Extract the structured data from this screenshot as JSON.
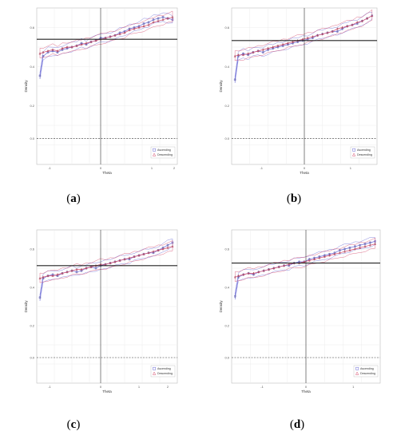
{
  "chart_data": [
    {
      "type": "line",
      "caption_letter": "a",
      "xlabel": "Theta",
      "ylabel": "Density",
      "xlim": [
        -2.2,
        2.2
      ],
      "ylim": [
        0.38,
        0.5
      ],
      "xticks": [
        "-1",
        "0",
        "1",
        "2"
      ],
      "xtick_values": [
        -1.8,
        -0.2,
        1.4,
        2.1
      ],
      "yticks": [
        "0.0",
        "0.2",
        "0.4",
        "0.6"
      ],
      "ytick_values": [
        0.4,
        0.425,
        0.455,
        0.485
      ],
      "hline_solid": 0.476,
      "hline_dashed": 0.4,
      "vline": -0.2,
      "grid": true,
      "legend": {
        "placement": "bottom-right",
        "entries": [
          "Ascending",
          "Descending"
        ]
      },
      "colors": {
        "Ascending": "#6b6bd6",
        "Descending": "#d64a6b"
      },
      "series": [
        {
          "name": "Ascending",
          "x": [
            -2.1,
            -2.0,
            -1.85,
            -1.7,
            -1.55,
            -1.4,
            -1.25,
            -1.1,
            -0.95,
            -0.8,
            -0.65,
            -0.5,
            -0.35,
            -0.2,
            -0.05,
            0.1,
            0.25,
            0.4,
            0.55,
            0.7,
            0.85,
            1.0,
            1.15,
            1.3,
            1.45,
            1.6,
            1.75,
            1.9,
            2.05
          ],
          "y": [
            0.448,
            0.463,
            0.466,
            0.467,
            0.466,
            0.468,
            0.469,
            0.47,
            0.471,
            0.473,
            0.472,
            0.474,
            0.475,
            0.477,
            0.477,
            0.478,
            0.479,
            0.481,
            0.482,
            0.484,
            0.485,
            0.486,
            0.488,
            0.489,
            0.491,
            0.492,
            0.493,
            0.492,
            0.491
          ]
        },
        {
          "name": "Descending",
          "x": [
            -2.1,
            -2.0,
            -1.85,
            -1.7,
            -1.55,
            -1.4,
            -1.25,
            -1.1,
            -0.95,
            -0.8,
            -0.65,
            -0.5,
            -0.35,
            -0.2,
            -0.05,
            0.1,
            0.25,
            0.4,
            0.55,
            0.7,
            0.85,
            1.0,
            1.15,
            1.3,
            1.45,
            1.6,
            1.75,
            1.9,
            2.05
          ],
          "y": [
            0.465,
            0.466,
            0.467,
            0.468,
            0.467,
            0.469,
            0.47,
            0.47,
            0.471,
            0.472,
            0.473,
            0.474,
            0.475,
            0.476,
            0.477,
            0.478,
            0.479,
            0.48,
            0.481,
            0.483,
            0.484,
            0.485,
            0.486,
            0.487,
            0.489,
            0.49,
            0.491,
            0.492,
            0.493
          ]
        }
      ]
    },
    {
      "type": "line",
      "caption_letter": "b",
      "xlabel": "Theta",
      "ylabel": "Density",
      "xlim": [
        -2.2,
        2.2
      ],
      "ylim": [
        0.38,
        0.5
      ],
      "xticks": [
        "-1",
        "0",
        "1"
      ],
      "xtick_values": [
        -1.3,
        0.0,
        1.4
      ],
      "yticks": [
        "0.0",
        "0.2",
        "0.4",
        "0.6"
      ],
      "ytick_values": [
        0.4,
        0.425,
        0.455,
        0.485
      ],
      "hline_solid": 0.475,
      "hline_dashed": 0.4,
      "vline": 0.0,
      "grid": true,
      "legend": {
        "placement": "bottom-right",
        "entries": [
          "Ascending",
          "Descending"
        ]
      },
      "colors": {
        "Ascending": "#6b6bd6",
        "Descending": "#d64a6b"
      },
      "series": [
        {
          "name": "Ascending",
          "x": [
            -2.1,
            -2.0,
            -1.85,
            -1.7,
            -1.55,
            -1.4,
            -1.25,
            -1.1,
            -0.95,
            -0.8,
            -0.65,
            -0.5,
            -0.35,
            -0.2,
            -0.05,
            0.1,
            0.25,
            0.4,
            0.55,
            0.7,
            0.85,
            1.0,
            1.15,
            1.3,
            1.45,
            1.6,
            1.75,
            1.9,
            2.05
          ],
          "y": [
            0.445,
            0.463,
            0.465,
            0.464,
            0.466,
            0.467,
            0.466,
            0.468,
            0.469,
            0.47,
            0.471,
            0.472,
            0.473,
            0.474,
            0.475,
            0.476,
            0.477,
            0.479,
            0.48,
            0.481,
            0.482,
            0.482,
            0.484,
            0.486,
            0.487,
            0.488,
            0.49,
            0.492,
            0.494
          ]
        },
        {
          "name": "Descending",
          "x": [
            -2.1,
            -2.0,
            -1.85,
            -1.7,
            -1.55,
            -1.4,
            -1.25,
            -1.1,
            -0.95,
            -0.8,
            -0.65,
            -0.5,
            -0.35,
            -0.2,
            -0.05,
            0.1,
            0.25,
            0.4,
            0.55,
            0.7,
            0.85,
            1.0,
            1.15,
            1.3,
            1.45,
            1.6,
            1.75,
            1.9,
            2.05
          ],
          "y": [
            0.463,
            0.464,
            0.464,
            0.465,
            0.466,
            0.467,
            0.468,
            0.469,
            0.47,
            0.471,
            0.472,
            0.473,
            0.474,
            0.475,
            0.476,
            0.477,
            0.478,
            0.479,
            0.48,
            0.481,
            0.482,
            0.484,
            0.485,
            0.486,
            0.487,
            0.489,
            0.49,
            0.492,
            0.494
          ]
        }
      ]
    },
    {
      "type": "line",
      "caption_letter": "c",
      "xlabel": "Theta",
      "ylabel": "Density",
      "xlim": [
        -2.2,
        2.2
      ],
      "ylim": [
        0.38,
        0.5
      ],
      "xticks": [
        "-1",
        "0",
        "1",
        "2"
      ],
      "xtick_values": [
        -1.8,
        -0.2,
        1.0,
        1.9
      ],
      "yticks": [
        "0.0",
        "0.2",
        "0.4",
        "0.6"
      ],
      "ytick_values": [
        0.4,
        0.425,
        0.455,
        0.485
      ],
      "hline_solid": 0.472,
      "hline_dashed": 0.4,
      "vline": -0.2,
      "grid": true,
      "legend": {
        "placement": "bottom-right",
        "entries": [
          "Ascending",
          "Descending"
        ]
      },
      "colors": {
        "Ascending": "#6b6bd6",
        "Descending": "#d64a6b"
      },
      "series": [
        {
          "name": "Ascending",
          "x": [
            -2.1,
            -2.0,
            -1.85,
            -1.7,
            -1.55,
            -1.4,
            -1.25,
            -1.1,
            -0.95,
            -0.8,
            -0.65,
            -0.5,
            -0.35,
            -0.2,
            -0.05,
            0.1,
            0.25,
            0.4,
            0.55,
            0.7,
            0.85,
            1.0,
            1.15,
            1.3,
            1.45,
            1.6,
            1.75,
            1.9,
            2.05
          ],
          "y": [
            0.447,
            0.462,
            0.464,
            0.465,
            0.464,
            0.466,
            0.467,
            0.468,
            0.467,
            0.468,
            0.47,
            0.471,
            0.47,
            0.472,
            0.473,
            0.474,
            0.475,
            0.476,
            0.477,
            0.477,
            0.479,
            0.48,
            0.481,
            0.482,
            0.482,
            0.484,
            0.486,
            0.488,
            0.49
          ]
        },
        {
          "name": "Descending",
          "x": [
            -2.1,
            -2.0,
            -1.85,
            -1.7,
            -1.55,
            -1.4,
            -1.25,
            -1.1,
            -0.95,
            -0.8,
            -0.65,
            -0.5,
            -0.35,
            -0.2,
            -0.05,
            0.1,
            0.25,
            0.4,
            0.55,
            0.7,
            0.85,
            1.0,
            1.15,
            1.3,
            1.45,
            1.6,
            1.75,
            1.9,
            2.05
          ],
          "y": [
            0.462,
            0.463,
            0.464,
            0.464,
            0.465,
            0.466,
            0.467,
            0.468,
            0.469,
            0.469,
            0.47,
            0.471,
            0.472,
            0.473,
            0.473,
            0.474,
            0.475,
            0.476,
            0.477,
            0.478,
            0.479,
            0.48,
            0.481,
            0.482,
            0.483,
            0.484,
            0.485,
            0.486,
            0.487
          ]
        }
      ]
    },
    {
      "type": "line",
      "caption_letter": "d",
      "xlabel": "Theta",
      "ylabel": "Density",
      "xlim": [
        -2.2,
        2.2
      ],
      "ylim": [
        0.38,
        0.5
      ],
      "xticks": [
        "-1",
        "0",
        "1"
      ],
      "xtick_values": [
        -1.3,
        0.0,
        1.4
      ],
      "yticks": [
        "0.0",
        "0.2",
        "0.4",
        "0.6"
      ],
      "ytick_values": [
        0.4,
        0.425,
        0.455,
        0.485
      ],
      "hline_solid": 0.474,
      "hline_dashed": 0.4,
      "vline": 0.0,
      "grid": true,
      "legend": {
        "placement": "bottom-right",
        "entries": [
          "Ascending",
          "Descending"
        ]
      },
      "colors": {
        "Ascending": "#6b6bd6",
        "Descending": "#d64a6b"
      },
      "series": [
        {
          "name": "Ascending",
          "x": [
            -2.1,
            -2.0,
            -1.85,
            -1.7,
            -1.55,
            -1.4,
            -1.25,
            -1.1,
            -0.95,
            -0.8,
            -0.65,
            -0.5,
            -0.35,
            -0.2,
            -0.05,
            0.1,
            0.25,
            0.4,
            0.55,
            0.7,
            0.85,
            1.0,
            1.15,
            1.3,
            1.45,
            1.6,
            1.75,
            1.9,
            2.05
          ],
          "y": [
            0.448,
            0.463,
            0.465,
            0.466,
            0.465,
            0.467,
            0.468,
            0.469,
            0.47,
            0.471,
            0.472,
            0.472,
            0.474,
            0.475,
            0.475,
            0.477,
            0.478,
            0.479,
            0.48,
            0.481,
            0.482,
            0.484,
            0.485,
            0.486,
            0.487,
            0.488,
            0.489,
            0.49,
            0.491
          ]
        },
        {
          "name": "Descending",
          "x": [
            -2.1,
            -2.0,
            -1.85,
            -1.7,
            -1.55,
            -1.4,
            -1.25,
            -1.1,
            -0.95,
            -0.8,
            -0.65,
            -0.5,
            -0.35,
            -0.2,
            -0.05,
            0.1,
            0.25,
            0.4,
            0.55,
            0.7,
            0.85,
            1.0,
            1.15,
            1.3,
            1.45,
            1.6,
            1.75,
            1.9,
            2.05
          ],
          "y": [
            0.463,
            0.464,
            0.465,
            0.466,
            0.466,
            0.467,
            0.468,
            0.469,
            0.47,
            0.471,
            0.472,
            0.473,
            0.474,
            0.474,
            0.475,
            0.476,
            0.477,
            0.478,
            0.479,
            0.48,
            0.481,
            0.482,
            0.483,
            0.484,
            0.485,
            0.486,
            0.487,
            0.488,
            0.489
          ]
        }
      ]
    }
  ]
}
